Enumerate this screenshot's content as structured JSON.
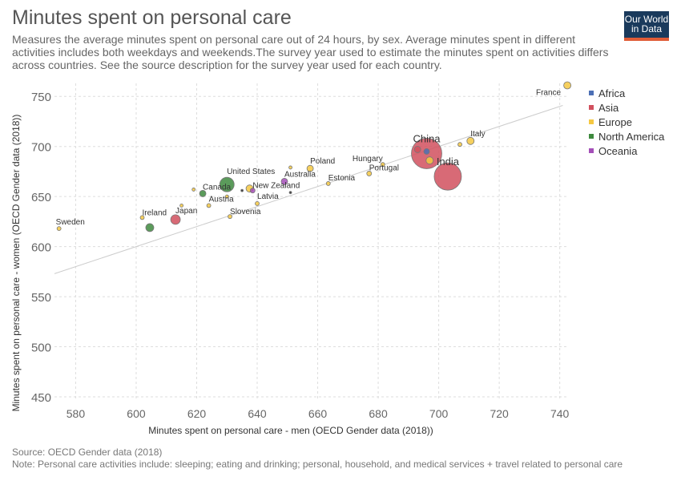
{
  "header": {
    "title": "Minutes spent on personal care",
    "subtitle": "Measures the average minutes spent on personal care out of 24 hours, by sex. Average minutes spent in different activities includes both weekdays and weekends.The survey year used to estimate the minutes spent on activities differs across countries. See the source description for the survey year used for each country.",
    "logo_line1": "Our World",
    "logo_line2": "in Data"
  },
  "footer": {
    "source": "Source: OECD Gender data (2018)",
    "note": "Note: Personal care activities include: sleeping; eating and drinking; personal, household, and medical services + travel related to personal care"
  },
  "colors": {
    "Africa": "#4c6fb5",
    "Asia": "#d1505e",
    "Europe": "#f5c842",
    "North America": "#3e8a3e",
    "Oceania": "#a44fb8",
    "Other": "#222222",
    "grid": "#dddddd",
    "trend": "#cccccc"
  },
  "chart_data": {
    "type": "scatter",
    "xlabel": "Minutes spent on personal care - men (OECD Gender data (2018))",
    "ylabel": "Minutes spent on personal care - women (OECD Gender data (2018))",
    "xlim": [
      573,
      743
    ],
    "ylim": [
      446,
      763
    ],
    "xticks": [
      580,
      600,
      620,
      640,
      660,
      680,
      700,
      720,
      740
    ],
    "yticks": [
      450,
      500,
      550,
      600,
      650,
      700,
      750
    ],
    "grid": true,
    "legend_position": "right",
    "legend": [
      "Africa",
      "Asia",
      "Europe",
      "North America",
      "Oceania"
    ],
    "trendline": [
      [
        573,
        573
      ],
      [
        741,
        741
      ]
    ],
    "points": [
      {
        "label": "France",
        "x": 742.5,
        "y": 761,
        "region": "Europe",
        "size": 4.5
      },
      {
        "label": "Italy",
        "x": 710.5,
        "y": 705.5,
        "region": "Europe",
        "size": 4.5
      },
      {
        "label": "",
        "x": 707,
        "y": 702,
        "region": "Europe",
        "size": 2.5
      },
      {
        "label": "China",
        "x": 696,
        "y": 693,
        "region": "Asia",
        "size": 19
      },
      {
        "label": "",
        "x": 693,
        "y": 697,
        "region": "Asia",
        "size": 4
      },
      {
        "label": "",
        "x": 696,
        "y": 695,
        "region": "Africa",
        "size": 3.5
      },
      {
        "label": "",
        "x": 697,
        "y": 686,
        "region": "Europe",
        "size": 4.5
      },
      {
        "label": "India",
        "x": 703,
        "y": 670,
        "region": "Asia",
        "size": 17
      },
      {
        "label": "Hungary",
        "x": 681.5,
        "y": 682,
        "region": "Europe",
        "size": 2.5
      },
      {
        "label": "Portugal",
        "x": 677,
        "y": 673,
        "region": "Europe",
        "size": 3
      },
      {
        "label": "Estonia",
        "x": 663.5,
        "y": 663,
        "region": "Europe",
        "size": 2.5
      },
      {
        "label": "Poland",
        "x": 657.5,
        "y": 678,
        "region": "Europe",
        "size": 4
      },
      {
        "label": "",
        "x": 651,
        "y": 679,
        "region": "Europe",
        "size": 2
      },
      {
        "label": "Australia",
        "x": 649,
        "y": 665,
        "region": "Oceania",
        "size": 4
      },
      {
        "label": "",
        "x": 651,
        "y": 654,
        "region": "Other",
        "size": 1.5
      },
      {
        "label": "New Zealand",
        "x": 638.5,
        "y": 656,
        "region": "Oceania",
        "size": 3
      },
      {
        "label": "",
        "x": 637.5,
        "y": 658,
        "region": "Europe",
        "size": 4.5
      },
      {
        "label": "",
        "x": 635,
        "y": 656,
        "region": "Other",
        "size": 1.5
      },
      {
        "label": "United States",
        "x": 630,
        "y": 662,
        "region": "North America",
        "size": 9
      },
      {
        "label": "",
        "x": 630,
        "y": 650,
        "region": "Europe",
        "size": 2
      },
      {
        "label": "Latvia",
        "x": 640,
        "y": 643,
        "region": "Europe",
        "size": 2.5
      },
      {
        "label": "Slovenia",
        "x": 631,
        "y": 630,
        "region": "Europe",
        "size": 2.5
      },
      {
        "label": "Canada",
        "x": 622,
        "y": 653,
        "region": "North America",
        "size": 4
      },
      {
        "label": "",
        "x": 619,
        "y": 657,
        "region": "Europe",
        "size": 2
      },
      {
        "label": "Austria",
        "x": 624,
        "y": 641,
        "region": "Europe",
        "size": 2.5
      },
      {
        "label": "",
        "x": 615,
        "y": 641,
        "region": "Europe",
        "size": 2
      },
      {
        "label": "Japan",
        "x": 613,
        "y": 627,
        "region": "Asia",
        "size": 6
      },
      {
        "label": "Ireland",
        "x": 602,
        "y": 629,
        "region": "Europe",
        "size": 2.5
      },
      {
        "label": "",
        "x": 604.5,
        "y": 619,
        "region": "North America",
        "size": 5
      },
      {
        "label": "Sweden",
        "x": 574.5,
        "y": 618,
        "region": "Europe",
        "size": 2.5
      }
    ]
  }
}
